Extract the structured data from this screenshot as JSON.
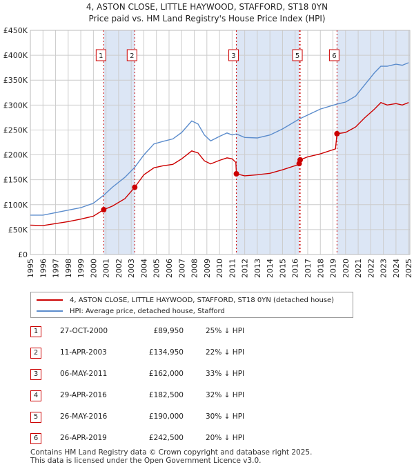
{
  "title_line1": "4, ASTON CLOSE, LITTLE HAYWOOD, STAFFORD, ST18 0YN",
  "title_line2": "Price paid vs. HM Land Registry's House Price Index (HPI)",
  "legend": {
    "property_label": "4, ASTON CLOSE, LITTLE HAYWOOD, STAFFORD, ST18 0YN (detached house)",
    "hpi_label": "HPI: Average price, detached house, Stafford"
  },
  "colors": {
    "property": "#cc0000",
    "hpi": "#5b8ccc",
    "band": "#dce6f5",
    "grid": "#cccccc"
  },
  "chart_data": {
    "type": "line",
    "ylim": [
      0,
      450000
    ],
    "xlim": [
      1995,
      2025.1
    ],
    "y_ticks": [
      {
        "value": 0,
        "label": "£0"
      },
      {
        "value": 50000,
        "label": "£50K"
      },
      {
        "value": 100000,
        "label": "£100K"
      },
      {
        "value": 150000,
        "label": "£150K"
      },
      {
        "value": 200000,
        "label": "£200K"
      },
      {
        "value": 250000,
        "label": "£250K"
      },
      {
        "value": 300000,
        "label": "£300K"
      },
      {
        "value": 350000,
        "label": "£350K"
      },
      {
        "value": 400000,
        "label": "£400K"
      },
      {
        "value": 450000,
        "label": "£450K"
      }
    ],
    "x_ticks": [
      "1995",
      "1996",
      "1997",
      "1998",
      "1999",
      "2000",
      "2001",
      "2002",
      "2003",
      "2004",
      "2005",
      "2006",
      "2007",
      "2008",
      "2009",
      "2010",
      "2011",
      "2012",
      "2013",
      "2014",
      "2015",
      "2016",
      "2017",
      "2018",
      "2019",
      "2020",
      "2021",
      "2022",
      "2023",
      "2024",
      "2025"
    ],
    "bands": [
      [
        2000.82,
        2003.28
      ],
      [
        2011.34,
        2016.32
      ],
      [
        2019.32,
        2025.1
      ]
    ],
    "series": [
      {
        "name": "hpi",
        "points": [
          [
            1995.0,
            79000
          ],
          [
            1996.0,
            79000
          ],
          [
            1997.0,
            84000
          ],
          [
            1998.0,
            89000
          ],
          [
            1999.0,
            94000
          ],
          [
            2000.0,
            103000
          ],
          [
            2000.82,
            119000
          ],
          [
            2001.5,
            135000
          ],
          [
            2002.5,
            155000
          ],
          [
            2003.28,
            175000
          ],
          [
            2004.0,
            200000
          ],
          [
            2004.8,
            222000
          ],
          [
            2005.5,
            227000
          ],
          [
            2006.3,
            232000
          ],
          [
            2007.0,
            245000
          ],
          [
            2007.8,
            268000
          ],
          [
            2008.3,
            262000
          ],
          [
            2008.8,
            240000
          ],
          [
            2009.3,
            228000
          ],
          [
            2010.0,
            237000
          ],
          [
            2010.6,
            244000
          ],
          [
            2011.0,
            240000
          ],
          [
            2011.34,
            242000
          ],
          [
            2012.0,
            235000
          ],
          [
            2013.0,
            234000
          ],
          [
            2014.0,
            240000
          ],
          [
            2015.0,
            252000
          ],
          [
            2016.32,
            272000
          ],
          [
            2017.0,
            280000
          ],
          [
            2018.0,
            292000
          ],
          [
            2019.32,
            302000
          ],
          [
            2020.0,
            306000
          ],
          [
            2020.8,
            318000
          ],
          [
            2021.5,
            340000
          ],
          [
            2022.3,
            365000
          ],
          [
            2022.8,
            378000
          ],
          [
            2023.3,
            378000
          ],
          [
            2024.0,
            382000
          ],
          [
            2024.5,
            380000
          ],
          [
            2025.0,
            385000
          ]
        ]
      },
      {
        "name": "property",
        "points": [
          [
            1995.0,
            59000
          ],
          [
            1996.0,
            58000
          ],
          [
            1997.0,
            62000
          ],
          [
            1998.0,
            66000
          ],
          [
            1999.0,
            71000
          ],
          [
            2000.0,
            77000
          ],
          [
            2000.82,
            89950
          ],
          [
            2001.5,
            97000
          ],
          [
            2002.5,
            112000
          ],
          [
            2003.28,
            134950
          ],
          [
            2004.0,
            160000
          ],
          [
            2004.8,
            174000
          ],
          [
            2005.5,
            178000
          ],
          [
            2006.3,
            181000
          ],
          [
            2007.0,
            192000
          ],
          [
            2007.8,
            208000
          ],
          [
            2008.3,
            204000
          ],
          [
            2008.8,
            188000
          ],
          [
            2009.3,
            182000
          ],
          [
            2010.0,
            189000
          ],
          [
            2010.6,
            194000
          ],
          [
            2011.0,
            192000
          ],
          [
            2011.3,
            185000
          ],
          [
            2011.34,
            162000
          ],
          [
            2012.0,
            158000
          ],
          [
            2013.0,
            160000
          ],
          [
            2014.0,
            163000
          ],
          [
            2015.0,
            170000
          ],
          [
            2016.2,
            180000
          ],
          [
            2016.32,
            182500
          ],
          [
            2016.4,
            190000
          ],
          [
            2017.0,
            196000
          ],
          [
            2018.0,
            202000
          ],
          [
            2019.2,
            212000
          ],
          [
            2019.32,
            242500
          ],
          [
            2020.0,
            245000
          ],
          [
            2020.8,
            256000
          ],
          [
            2021.5,
            274000
          ],
          [
            2022.3,
            292000
          ],
          [
            2022.8,
            305000
          ],
          [
            2023.3,
            300000
          ],
          [
            2024.0,
            303000
          ],
          [
            2024.5,
            300000
          ],
          [
            2025.0,
            305000
          ]
        ]
      }
    ],
    "markers": [
      {
        "id": "1",
        "x": 2000.82,
        "y": 89950
      },
      {
        "id": "2",
        "x": 2003.28,
        "y": 134950
      },
      {
        "id": "3",
        "x": 2011.34,
        "y": 162000
      },
      {
        "id": "4",
        "x": 2016.32,
        "y": 182500
      },
      {
        "id": "5",
        "x": 2016.4,
        "y": 190000
      },
      {
        "id": "6",
        "x": 2019.32,
        "y": 242500
      }
    ],
    "box_markers": [
      {
        "id": "1",
        "x": 2000.82
      },
      {
        "id": "2",
        "x": 2003.28
      },
      {
        "id": "3",
        "x": 2011.34
      },
      {
        "id": "5",
        "x": 2016.4
      },
      {
        "id": "6",
        "x": 2019.32
      }
    ]
  },
  "sales": [
    {
      "id": "1",
      "date": "27-OCT-2000",
      "price": "£89,950",
      "pct": "25% ↓ HPI"
    },
    {
      "id": "2",
      "date": "11-APR-2003",
      "price": "£134,950",
      "pct": "22% ↓ HPI"
    },
    {
      "id": "3",
      "date": "06-MAY-2011",
      "price": "£162,000",
      "pct": "33% ↓ HPI"
    },
    {
      "id": "4",
      "date": "29-APR-2016",
      "price": "£182,500",
      "pct": "32% ↓ HPI"
    },
    {
      "id": "5",
      "date": "26-MAY-2016",
      "price": "£190,000",
      "pct": "30% ↓ HPI"
    },
    {
      "id": "6",
      "date": "26-APR-2019",
      "price": "£242,500",
      "pct": "20% ↓ HPI"
    }
  ],
  "footer_line1": "Contains HM Land Registry data © Crown copyright and database right 2025.",
  "footer_line2": "This data is licensed under the Open Government Licence v3.0."
}
